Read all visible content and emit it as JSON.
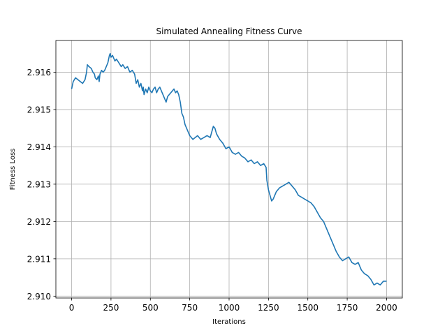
{
  "chart_data": {
    "type": "line",
    "title": "Simulated Annealing Fitness Curve",
    "xlabel": "Iterations",
    "ylabel": "Fitness Loss",
    "xlim": [
      -100,
      2100
    ],
    "ylim": [
      2.90995,
      2.91685
    ],
    "xticks": [
      0,
      250,
      500,
      750,
      1000,
      1250,
      1500,
      1750,
      2000
    ],
    "yticks": [
      2.91,
      2.911,
      2.912,
      2.913,
      2.914,
      2.915,
      2.916
    ],
    "ytick_labels": [
      "2.910",
      "2.911",
      "2.912",
      "2.913",
      "2.914",
      "2.915",
      "2.916"
    ],
    "grid": true,
    "line_color": "#1f77b4",
    "series": [
      {
        "x": [
          0,
          10,
          25,
          40,
          55,
          70,
          85,
          95,
          100,
          110,
          125,
          135,
          145,
          150,
          160,
          170,
          175,
          180,
          190,
          200,
          210,
          220,
          230,
          240,
          245,
          250,
          260,
          275,
          285,
          300,
          315,
          325,
          340,
          355,
          370,
          385,
          400,
          410,
          420,
          430,
          440,
          450,
          455,
          460,
          470,
          480,
          490,
          500,
          510,
          520,
          530,
          540,
          550,
          560,
          570,
          580,
          590,
          600,
          610,
          620,
          640,
          650,
          660,
          670,
          680,
          690,
          700,
          710,
          720,
          735,
          750,
          760,
          770,
          785,
          800,
          820,
          840,
          860,
          880,
          890,
          900,
          910,
          920,
          940,
          960,
          980,
          1000,
          1020,
          1040,
          1060,
          1080,
          1100,
          1120,
          1140,
          1160,
          1180,
          1200,
          1220,
          1235,
          1240,
          1250,
          1260,
          1270,
          1280,
          1300,
          1320,
          1340,
          1360,
          1380,
          1400,
          1420,
          1440,
          1460,
          1480,
          1500,
          1520,
          1540,
          1560,
          1580,
          1600,
          1620,
          1640,
          1660,
          1680,
          1700,
          1720,
          1740,
          1760,
          1780,
          1800,
          1820,
          1840,
          1860,
          1880,
          1900,
          1920,
          1940,
          1960,
          1980,
          2000
        ],
        "y": [
          2.91555,
          2.91575,
          2.91585,
          2.9158,
          2.91575,
          2.9157,
          2.9158,
          2.916,
          2.9162,
          2.91615,
          2.9161,
          2.916,
          2.91595,
          2.91585,
          2.9158,
          2.9159,
          2.91575,
          2.91595,
          2.91605,
          2.916,
          2.91605,
          2.91615,
          2.91625,
          2.91645,
          2.9165,
          2.9164,
          2.91645,
          2.9163,
          2.91635,
          2.91625,
          2.91615,
          2.9162,
          2.9161,
          2.91615,
          2.916,
          2.91605,
          2.91595,
          2.9157,
          2.9158,
          2.9156,
          2.9157,
          2.9155,
          2.9156,
          2.9154,
          2.91555,
          2.91545,
          2.9156,
          2.9155,
          2.91545,
          2.91555,
          2.9156,
          2.91545,
          2.91555,
          2.9156,
          2.9155,
          2.9154,
          2.9153,
          2.9152,
          2.91535,
          2.9154,
          2.9155,
          2.91555,
          2.91545,
          2.9155,
          2.9154,
          2.9152,
          2.9149,
          2.9148,
          2.9146,
          2.91445,
          2.9143,
          2.91425,
          2.9142,
          2.91425,
          2.9143,
          2.9142,
          2.91425,
          2.9143,
          2.91425,
          2.9144,
          2.91455,
          2.9145,
          2.91435,
          2.9142,
          2.9141,
          2.91395,
          2.914,
          2.91385,
          2.9138,
          2.91385,
          2.91375,
          2.9137,
          2.9136,
          2.91365,
          2.91355,
          2.9136,
          2.9135,
          2.91355,
          2.91345,
          2.9131,
          2.91285,
          2.9127,
          2.91255,
          2.9126,
          2.9128,
          2.9129,
          2.91295,
          2.913,
          2.91305,
          2.91295,
          2.91285,
          2.9127,
          2.91265,
          2.9126,
          2.91255,
          2.9125,
          2.9124,
          2.91225,
          2.9121,
          2.912,
          2.9118,
          2.9116,
          2.9114,
          2.9112,
          2.91105,
          2.91095,
          2.911,
          2.91105,
          2.9109,
          2.91085,
          2.9109,
          2.9107,
          2.9106,
          2.91055,
          2.91045,
          2.9103,
          2.91035,
          2.9103,
          2.9104,
          2.9104
        ]
      }
    ]
  }
}
